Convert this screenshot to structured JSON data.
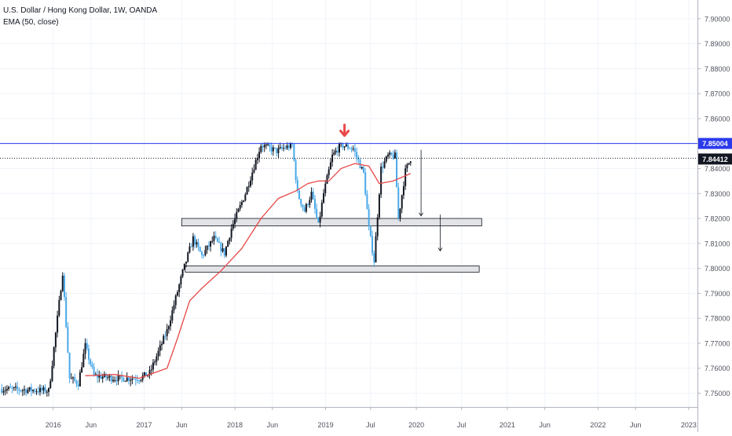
{
  "legend": {
    "symbol_line": "U.S. Dollar / Hong Kong Dollar, 1W, OANDA",
    "indicator_line": "EMA (50, close)"
  },
  "price_tags": {
    "resistance": "7.85004",
    "last": "7.84412"
  },
  "colors": {
    "up": "#131722",
    "down": "#4aa8e8",
    "ema": "#e84848",
    "resistance_line": "#2b3aeb",
    "arrow": "#e84848",
    "zone_fill": "#e2e3e6",
    "zone_border": "#131722",
    "grid": "#f0f3fa",
    "axis_text": "#50535e"
  },
  "chart_data": {
    "type": "candlestick",
    "symbol": "U.S. Dollar / Hong Kong Dollar",
    "interval": "1W",
    "source": "OANDA",
    "indicators": [
      {
        "name": "EMA",
        "params": "50, close"
      }
    ],
    "y_axis": {
      "ylim": [
        7.7445,
        7.9075
      ],
      "ticks": [
        "7.75000",
        "7.76000",
        "7.77000",
        "7.78000",
        "7.79000",
        "7.80000",
        "7.81000",
        "7.82000",
        "7.83000",
        "7.84000",
        "7.85000",
        "7.86000",
        "7.87000",
        "7.88000",
        "7.89000",
        "7.90000"
      ]
    },
    "x_axis": {
      "range": [
        "2015-06-01",
        "2023-02-05"
      ],
      "ticks": [
        {
          "label": "2016",
          "date": "2016-01-01"
        },
        {
          "label": "Jun",
          "date": "2016-06-01"
        },
        {
          "label": "2017",
          "date": "2017-01-01"
        },
        {
          "label": "Jun",
          "date": "2017-06-01"
        },
        {
          "label": "2018",
          "date": "2018-01-01"
        },
        {
          "label": "Jun",
          "date": "2018-06-01"
        },
        {
          "label": "2019",
          "date": "2019-01-01"
        },
        {
          "label": "Jul",
          "date": "2019-07-01"
        },
        {
          "label": "2020",
          "date": "2020-01-01"
        },
        {
          "label": "Jul",
          "date": "2020-07-01"
        },
        {
          "label": "2021",
          "date": "2021-01-01"
        },
        {
          "label": "Jun",
          "date": "2021-06-01"
        },
        {
          "label": "2022",
          "date": "2022-01-01"
        },
        {
          "label": "Jun",
          "date": "2022-06-01"
        },
        {
          "label": "2023",
          "date": "2023-01-01"
        }
      ]
    },
    "close_path": [
      [
        "2015-06-01",
        7.7517
      ],
      [
        "2015-12-15",
        7.751
      ],
      [
        "2016-01-18",
        7.78
      ],
      [
        "2016-02-08",
        7.7985
      ],
      [
        "2016-03-07",
        7.756
      ],
      [
        "2016-04-11",
        7.754
      ],
      [
        "2016-05-09",
        7.769
      ],
      [
        "2016-06-13",
        7.757
      ],
      [
        "2016-09-05",
        7.756
      ],
      [
        "2016-12-12",
        7.756
      ],
      [
        "2017-01-23",
        7.758
      ],
      [
        "2017-04-03",
        7.775
      ],
      [
        "2017-06-05",
        7.7985
      ],
      [
        "2017-07-17",
        7.812
      ],
      [
        "2017-08-21",
        7.805
      ],
      [
        "2017-10-09",
        7.812
      ],
      [
        "2017-11-20",
        7.806
      ],
      [
        "2017-12-18",
        7.816
      ],
      [
        "2018-02-12",
        7.83
      ],
      [
        "2018-04-16",
        7.8495
      ],
      [
        "2018-06-18",
        7.847
      ],
      [
        "2018-08-20",
        7.8495
      ],
      [
        "2018-09-10",
        7.83
      ],
      [
        "2018-10-08",
        7.823
      ],
      [
        "2018-11-05",
        7.83
      ],
      [
        "2018-12-03",
        7.817
      ],
      [
        "2018-12-24",
        7.83
      ],
      [
        "2019-01-28",
        7.845
      ],
      [
        "2019-03-04",
        7.8495
      ],
      [
        "2019-04-22",
        7.848
      ],
      [
        "2019-06-03",
        7.838
      ],
      [
        "2019-06-24",
        7.816
      ],
      [
        "2019-07-15",
        7.803
      ],
      [
        "2019-08-12",
        7.84
      ],
      [
        "2019-09-09",
        7.845
      ],
      [
        "2019-10-07",
        7.845
      ],
      [
        "2019-10-21",
        7.82
      ],
      [
        "2019-11-18",
        7.839
      ],
      [
        "2019-12-09",
        7.844
      ]
    ],
    "ema_50": [
      [
        "2016-05-09",
        7.757
      ],
      [
        "2016-09-05",
        7.7575
      ],
      [
        "2016-12-12",
        7.756
      ],
      [
        "2017-02-06",
        7.758
      ],
      [
        "2017-04-03",
        7.76
      ],
      [
        "2017-05-15",
        7.772
      ],
      [
        "2017-07-03",
        7.787
      ],
      [
        "2017-08-21",
        7.792
      ],
      [
        "2017-11-06",
        7.799
      ],
      [
        "2018-01-29",
        7.808
      ],
      [
        "2018-04-16",
        7.82
      ],
      [
        "2018-06-25",
        7.828
      ],
      [
        "2018-09-03",
        7.831
      ],
      [
        "2018-10-22",
        7.834
      ],
      [
        "2018-12-03",
        7.835
      ],
      [
        "2019-01-14",
        7.835
      ],
      [
        "2019-03-04",
        7.84
      ],
      [
        "2019-04-29",
        7.842
      ],
      [
        "2019-06-24",
        7.841
      ],
      [
        "2019-08-05",
        7.834
      ],
      [
        "2019-09-30",
        7.835
      ],
      [
        "2019-12-09",
        7.838
      ]
    ],
    "resistance_level": 7.85004,
    "last_price": 7.84412,
    "support_zones": [
      {
        "start": "2017-06-01",
        "end": "2020-09-20",
        "low": 7.817,
        "high": 7.82
      },
      {
        "start": "2017-06-15",
        "end": "2020-09-10",
        "low": 7.7985,
        "high": 7.801
      }
    ],
    "annotations": [
      {
        "type": "arrow-down",
        "date": "2019-03-18",
        "from": 7.8575,
        "to": 7.8535
      },
      {
        "type": "arrow-down",
        "date": "2020-01-20",
        "from": 7.8475,
        "to": 7.821
      },
      {
        "type": "arrow-down",
        "date": "2020-04-06",
        "from": 7.8215,
        "to": 7.807
      }
    ]
  }
}
